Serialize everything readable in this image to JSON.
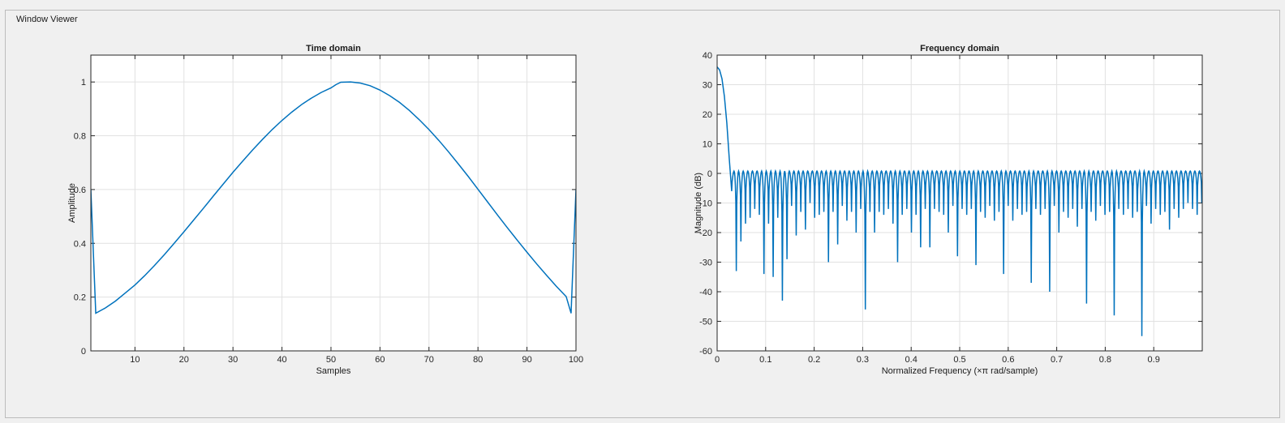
{
  "panel": {
    "title": "Window Viewer"
  },
  "colors": {
    "line": "#0072bd",
    "grid": "#e1e1e1",
    "axis": "#262626",
    "plotbg": "#ffffff"
  },
  "chart_data": [
    {
      "type": "line",
      "title": "Time domain",
      "xlabel": "Samples",
      "ylabel": "Amplitude",
      "xlim": [
        1,
        100
      ],
      "ylim": [
        0,
        1.1
      ],
      "xticks": [
        10,
        20,
        30,
        40,
        50,
        60,
        70,
        80,
        90,
        100
      ],
      "yticks": [
        0,
        0.2,
        0.4,
        0.6,
        0.8,
        1
      ],
      "ytick_labels": [
        "0",
        "0.2",
        "0.4",
        "0.6",
        "0.8",
        "1"
      ],
      "grid": true,
      "series": [
        {
          "x": [
            1,
            2,
            4,
            6,
            8,
            10,
            12,
            14,
            16,
            18,
            20,
            22,
            24,
            26,
            28,
            30,
            32,
            34,
            36,
            38,
            40,
            42,
            44,
            46,
            48,
            50,
            51,
            52,
            54,
            56,
            58,
            60,
            62,
            64,
            66,
            68,
            70,
            72,
            74,
            76,
            78,
            80,
            82,
            84,
            86,
            88,
            90,
            92,
            94,
            96,
            98,
            99,
            100
          ],
          "values": [
            0.6,
            0.14,
            0.16,
            0.185,
            0.215,
            0.245,
            0.28,
            0.318,
            0.358,
            0.4,
            0.443,
            0.487,
            0.531,
            0.576,
            0.62,
            0.664,
            0.706,
            0.747,
            0.786,
            0.823,
            0.857,
            0.888,
            0.916,
            0.94,
            0.961,
            0.978,
            0.99,
            0.999,
            1.0,
            0.996,
            0.986,
            0.97,
            0.949,
            0.924,
            0.894,
            0.86,
            0.823,
            0.783,
            0.74,
            0.695,
            0.649,
            0.601,
            0.553,
            0.505,
            0.458,
            0.412,
            0.367,
            0.323,
            0.281,
            0.24,
            0.202,
            0.14,
            0.6
          ]
        }
      ]
    },
    {
      "type": "line",
      "title": "Frequency domain",
      "xlabel": "Normalized Frequency (×π rad/sample)",
      "ylabel": "Magnitude (dB)",
      "xlim": [
        0,
        1
      ],
      "ylim": [
        -60,
        40
      ],
      "xticks": [
        0,
        0.1,
        0.2,
        0.3,
        0.4,
        0.5,
        0.6,
        0.7,
        0.8,
        0.9
      ],
      "yticks": [
        -60,
        -50,
        -40,
        -30,
        -20,
        -10,
        0,
        10,
        20,
        30,
        40
      ],
      "grid": true,
      "mainlobe": {
        "x": [
          0,
          0.005,
          0.01,
          0.015,
          0.02,
          0.025,
          0.03
        ],
        "values": [
          36,
          35,
          32,
          26,
          17,
          5,
          -6
        ]
      },
      "sidelobes": {
        "peak_db": 0.8,
        "null_x": [
          0.03,
          0.0395,
          0.049,
          0.0585,
          0.068,
          0.0775,
          0.087,
          0.0965,
          0.106,
          0.1155,
          0.125,
          0.1345,
          0.144,
          0.1535,
          0.163,
          0.1725,
          0.182,
          0.1915,
          0.201,
          0.2105,
          0.22,
          0.2295,
          0.239,
          0.2485,
          0.258,
          0.2675,
          0.277,
          0.2865,
          0.296,
          0.3055,
          0.315,
          0.3245,
          0.334,
          0.3435,
          0.353,
          0.3625,
          0.372,
          0.3815,
          0.391,
          0.4005,
          0.41,
          0.4195,
          0.429,
          0.4385,
          0.448,
          0.4575,
          0.467,
          0.4765,
          0.486,
          0.4955,
          0.505,
          0.5145,
          0.524,
          0.5335,
          0.543,
          0.5525,
          0.562,
          0.5715,
          0.581,
          0.5905,
          0.6,
          0.6095,
          0.619,
          0.6285,
          0.638,
          0.6475,
          0.657,
          0.6665,
          0.676,
          0.6855,
          0.695,
          0.7045,
          0.714,
          0.7235,
          0.733,
          0.7425,
          0.752,
          0.7615,
          0.771,
          0.7805,
          0.79,
          0.7995,
          0.809,
          0.8185,
          0.828,
          0.8375,
          0.847,
          0.8565,
          0.866,
          0.8755,
          0.885,
          0.8945,
          0.904,
          0.9135,
          0.923,
          0.9325,
          0.942,
          0.9515,
          0.961,
          0.9705,
          0.98,
          0.9895,
          0.999
        ],
        "null_db": [
          -7,
          -33,
          -23,
          -17,
          -15,
          -12,
          -14,
          -34,
          -17,
          -35,
          -15,
          -43,
          -29,
          -11,
          -21,
          -13,
          -19,
          -10,
          -15,
          -14,
          -13,
          -30,
          -13,
          -24,
          -11,
          -16,
          -13,
          -20,
          -12,
          -46,
          -13,
          -20,
          -13,
          -14,
          -12,
          -17,
          -30,
          -14,
          -12,
          -20,
          -14,
          -25,
          -12,
          -25,
          -12,
          -13,
          -14,
          -20,
          -11,
          -28,
          -12,
          -14,
          -12,
          -31,
          -13,
          -15,
          -11,
          -16,
          -13,
          -34,
          -11,
          -16,
          -12,
          -14,
          -13,
          -37,
          -12,
          -14,
          -12,
          -40,
          -11,
          -20,
          -13,
          -15,
          -12,
          -18,
          -12,
          -44,
          -13,
          -16,
          -11,
          -14,
          -13,
          -48,
          -12,
          -14,
          -12,
          -15,
          -13,
          -55,
          -11,
          -17,
          -12,
          -14,
          -13,
          -19,
          -12,
          -15,
          -12,
          -10,
          -12,
          -14,
          -10
        ]
      }
    }
  ]
}
